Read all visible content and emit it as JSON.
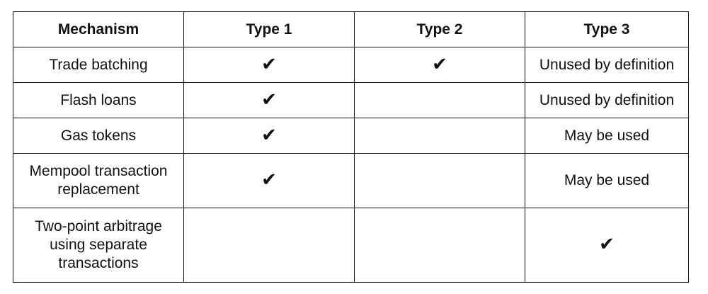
{
  "table": {
    "headers": [
      "Mechanism",
      "Type 1",
      "Type 2",
      "Type 3"
    ],
    "rows": [
      {
        "mechanism": "Trade batching",
        "type1": "✔",
        "type2": "✔",
        "type3": "Unused by definition"
      },
      {
        "mechanism": "Flash loans",
        "type1": "✔",
        "type2": "",
        "type3": "Unused by definition"
      },
      {
        "mechanism": "Gas tokens",
        "type1": "✔",
        "type2": "",
        "type3": "May be used"
      },
      {
        "mechanism": "Mempool transaction replacement",
        "type1": "✔",
        "type2": "",
        "type3": "May be used"
      },
      {
        "mechanism": "Two-point arbitrage using separate transactions",
        "type1": "",
        "type2": "",
        "type3": "✔"
      }
    ]
  }
}
